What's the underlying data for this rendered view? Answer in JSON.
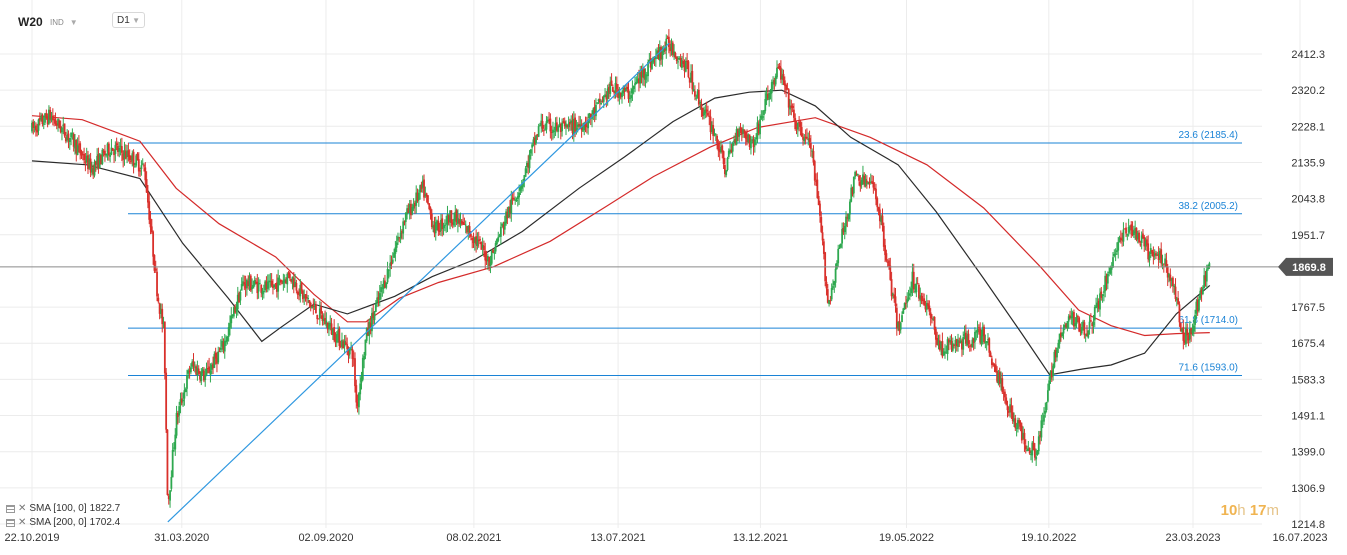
{
  "header": {
    "symbol": "W20",
    "type": "IND",
    "timeframe": "D1"
  },
  "legend": [
    {
      "prefix": "SMA [100, 0]",
      "value": "1822.7"
    },
    {
      "prefix": "SMA [200, 0]",
      "value": "1702.4"
    }
  ],
  "timer": {
    "h": "10",
    "h_unit": "h",
    "m": "17",
    "m_unit": "m"
  },
  "price_tag": "1869.8",
  "colors": {
    "up": "#2ea84f",
    "down": "#d9302b",
    "sma100": "#2b2b2b",
    "sma200": "#d42a2a",
    "fib": "#1a83d6",
    "trend": "#2f98e0",
    "tag": "#555555"
  },
  "chart_data": {
    "type": "candlestick",
    "instrument": "W20",
    "timeframe": "D1",
    "y_axis": {
      "ticks": [
        "2412.3",
        "2320.2",
        "2228.1",
        "2135.9",
        "2043.8",
        "1951.7",
        "1767.5",
        "1675.4",
        "1583.3",
        "1491.1",
        "1399.0",
        "1306.9",
        "1214.8"
      ]
    },
    "x_axis": {
      "ticks": [
        "22.10.2019",
        "31.03.2020",
        "02.09.2020",
        "08.02.2021",
        "13.07.2021",
        "13.12.2021",
        "19.05.2022",
        "19.10.2022",
        "23.03.2023",
        "16.07.2023"
      ]
    },
    "last_price": 1869.8,
    "fibonacci": [
      {
        "label": "23.6 (2185.4)",
        "level": 23.6,
        "value": 2185.4
      },
      {
        "label": "38.2 (2005.2)",
        "level": 38.2,
        "value": 2005.2
      },
      {
        "label": "61.8 (1714.0)",
        "level": 61.8,
        "value": 1714.0
      },
      {
        "label": "71.6 (1593.0)",
        "level": 71.6,
        "value": 1593.0
      }
    ],
    "trendline": {
      "from": {
        "date": "2020-03-16",
        "price": 1220
      },
      "to": {
        "date": "2021-09-06",
        "price": 2440
      }
    },
    "price_path": [
      [
        "2019-10-22",
        2220
      ],
      [
        "2019-11-10",
        2255
      ],
      [
        "2019-12-05",
        2190
      ],
      [
        "2019-12-25",
        2120
      ],
      [
        "2020-01-15",
        2175
      ],
      [
        "2020-02-05",
        2150
      ],
      [
        "2020-02-20",
        2120
      ],
      [
        "2020-03-05",
        1800
      ],
      [
        "2020-03-12",
        1700
      ],
      [
        "2020-03-16",
        1260
      ],
      [
        "2020-03-25",
        1480
      ],
      [
        "2020-04-10",
        1620
      ],
      [
        "2020-04-25",
        1590
      ],
      [
        "2020-05-15",
        1670
      ],
      [
        "2020-06-05",
        1830
      ],
      [
        "2020-07-05",
        1815
      ],
      [
        "2020-07-25",
        1850
      ],
      [
        "2020-08-10",
        1790
      ],
      [
        "2020-09-01",
        1730
      ],
      [
        "2020-09-15",
        1690
      ],
      [
        "2020-10-01",
        1650
      ],
      [
        "2020-10-05",
        1510
      ],
      [
        "2020-10-15",
        1690
      ],
      [
        "2020-11-05",
        1840
      ],
      [
        "2020-11-25",
        1990
      ],
      [
        "2020-12-15",
        2070
      ],
      [
        "2020-12-28",
        1965
      ],
      [
        "2021-01-15",
        2000
      ],
      [
        "2021-02-05",
        1955
      ],
      [
        "2021-02-25",
        1885
      ],
      [
        "2021-03-15",
        2000
      ],
      [
        "2021-04-01",
        2090
      ],
      [
        "2021-04-20",
        2230
      ],
      [
        "2021-05-15",
        2220
      ],
      [
        "2021-06-10",
        2240
      ],
      [
        "2021-07-05",
        2325
      ],
      [
        "2021-07-25",
        2310
      ],
      [
        "2021-08-15",
        2385
      ],
      [
        "2021-09-06",
        2440
      ],
      [
        "2021-09-25",
        2375
      ],
      [
        "2021-10-10",
        2280
      ],
      [
        "2021-10-25",
        2210
      ],
      [
        "2021-11-05",
        2120
      ],
      [
        "2021-11-20",
        2230
      ],
      [
        "2021-12-05",
        2180
      ],
      [
        "2021-12-20",
        2300
      ],
      [
        "2022-01-02",
        2375
      ],
      [
        "2022-01-20",
        2230
      ],
      [
        "2022-02-05",
        2180
      ],
      [
        "2022-02-15",
        1990
      ],
      [
        "2022-02-24",
        1770
      ],
      [
        "2022-03-10",
        1940
      ],
      [
        "2022-03-25",
        2100
      ],
      [
        "2022-04-15",
        2070
      ],
      [
        "2022-04-25",
        1935
      ],
      [
        "2022-05-10",
        1710
      ],
      [
        "2022-05-25",
        1840
      ],
      [
        "2022-06-10",
        1770
      ],
      [
        "2022-06-25",
        1660
      ],
      [
        "2022-07-20",
        1680
      ],
      [
        "2022-08-10",
        1700
      ],
      [
        "2022-08-25",
        1590
      ],
      [
        "2022-09-10",
        1490
      ],
      [
        "2022-09-25",
        1420
      ],
      [
        "2022-10-05",
        1400
      ],
      [
        "2022-10-15",
        1500
      ],
      [
        "2022-10-25",
        1650
      ],
      [
        "2022-11-10",
        1740
      ],
      [
        "2022-12-01",
        1710
      ],
      [
        "2022-12-15",
        1800
      ],
      [
        "2023-01-01",
        1930
      ],
      [
        "2023-01-15",
        1970
      ],
      [
        "2023-02-05",
        1900
      ],
      [
        "2023-02-20",
        1890
      ],
      [
        "2023-03-05",
        1790
      ],
      [
        "2023-03-12",
        1690
      ],
      [
        "2023-03-20",
        1705
      ],
      [
        "2023-04-01",
        1810
      ],
      [
        "2023-04-10",
        1870
      ]
    ],
    "sma100_path": [
      [
        "2019-10-22",
        2140
      ],
      [
        "2019-12-20",
        2130
      ],
      [
        "2020-02-15",
        2095
      ],
      [
        "2020-04-01",
        1930
      ],
      [
        "2020-05-20",
        1790
      ],
      [
        "2020-06-25",
        1680
      ],
      [
        "2020-07-15",
        1715
      ],
      [
        "2020-08-20",
        1775
      ],
      [
        "2020-09-25",
        1750
      ],
      [
        "2020-11-15",
        1795
      ],
      [
        "2020-12-25",
        1845
      ],
      [
        "2021-02-10",
        1890
      ],
      [
        "2021-04-01",
        1960
      ],
      [
        "2021-06-01",
        2070
      ],
      [
        "2021-07-20",
        2150
      ],
      [
        "2021-09-10",
        2240
      ],
      [
        "2021-10-25",
        2300
      ],
      [
        "2021-12-01",
        2315
      ],
      [
        "2022-01-05",
        2320
      ],
      [
        "2022-02-10",
        2280
      ],
      [
        "2022-03-20",
        2200
      ],
      [
        "2022-05-10",
        2130
      ],
      [
        "2022-06-20",
        2010
      ],
      [
        "2022-08-10",
        1840
      ],
      [
        "2022-09-20",
        1700
      ],
      [
        "2022-10-20",
        1595
      ],
      [
        "2022-11-25",
        1610
      ],
      [
        "2022-12-25",
        1620
      ],
      [
        "2023-01-30",
        1650
      ],
      [
        "2023-03-05",
        1750
      ],
      [
        "2023-04-10",
        1822.7
      ]
    ],
    "sma200_path": [
      [
        "2019-10-22",
        2255
      ],
      [
        "2019-12-15",
        2245
      ],
      [
        "2020-02-15",
        2190
      ],
      [
        "2020-03-25",
        2070
      ],
      [
        "2020-05-10",
        1980
      ],
      [
        "2020-07-10",
        1895
      ],
      [
        "2020-08-20",
        1800
      ],
      [
        "2020-09-25",
        1730
      ],
      [
        "2020-10-15",
        1730
      ],
      [
        "2020-11-20",
        1790
      ],
      [
        "2021-01-01",
        1830
      ],
      [
        "2021-03-01",
        1870
      ],
      [
        "2021-05-01",
        1935
      ],
      [
        "2021-07-01",
        2025
      ],
      [
        "2021-08-20",
        2100
      ],
      [
        "2021-10-20",
        2175
      ],
      [
        "2021-12-10",
        2225
      ],
      [
        "2022-02-10",
        2250
      ],
      [
        "2022-04-10",
        2200
      ],
      [
        "2022-06-10",
        2130
      ],
      [
        "2022-08-10",
        2020
      ],
      [
        "2022-10-10",
        1870
      ],
      [
        "2022-11-20",
        1760
      ],
      [
        "2022-12-25",
        1720
      ],
      [
        "2023-01-30",
        1695
      ],
      [
        "2023-03-05",
        1700
      ],
      [
        "2023-04-10",
        1702.4
      ]
    ]
  }
}
